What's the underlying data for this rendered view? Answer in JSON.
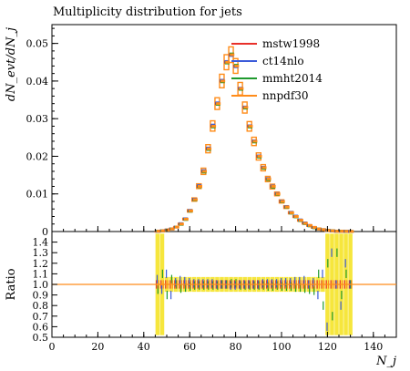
{
  "chart_data": {
    "type": "line",
    "title": "Multiplicity distribution for jets",
    "xlabel": "N_j",
    "ylabel": "dN_evt/dN_j",
    "ratio_ylabel": "Ratio",
    "xlim": [
      0,
      150
    ],
    "ylim": [
      0,
      0.055
    ],
    "ratio_ylim": [
      0.5,
      1.5
    ],
    "x_ticks": [
      0,
      20,
      40,
      60,
      80,
      100,
      120,
      140
    ],
    "y_ticks": [
      0,
      0.01,
      0.02,
      0.03,
      0.04,
      0.05
    ],
    "y_tick_labels": [
      "0",
      "0.01",
      "0.02",
      "0.03",
      "0.04",
      "0.05"
    ],
    "ratio_ticks": [
      0.5,
      0.6,
      0.7,
      0.8,
      0.9,
      1.0,
      1.1,
      1.2,
      1.3,
      1.4
    ],
    "ratio_tick_labels": [
      "0.5",
      "0.6",
      "0.7",
      "0.8",
      "0.9",
      "1.0",
      "1.1",
      "1.2",
      "1.3",
      "1.4"
    ],
    "legend_position": "top-right",
    "grid": false,
    "x": [
      46,
      48,
      50,
      52,
      54,
      56,
      58,
      60,
      62,
      64,
      66,
      68,
      70,
      72,
      74,
      76,
      78,
      80,
      82,
      84,
      86,
      88,
      90,
      92,
      94,
      96,
      98,
      100,
      102,
      104,
      106,
      108,
      110,
      112,
      114,
      116,
      118,
      120,
      122,
      124,
      126,
      128,
      130
    ],
    "series": [
      {
        "name": "mstw1998",
        "color": "#e8302a",
        "values": [
          0.0001,
          0.0002,
          0.0004,
          0.0007,
          0.0012,
          0.002,
          0.0033,
          0.0055,
          0.0085,
          0.012,
          0.016,
          0.022,
          0.028,
          0.034,
          0.04,
          0.045,
          0.047,
          0.044,
          0.038,
          0.033,
          0.028,
          0.024,
          0.02,
          0.017,
          0.014,
          0.012,
          0.01,
          0.008,
          0.0065,
          0.005,
          0.004,
          0.003,
          0.0022,
          0.0016,
          0.0011,
          0.0007,
          0.0005,
          0.0003,
          0.0002,
          0.0001,
          0.0001,
          5e-05,
          3e-05
        ]
      },
      {
        "name": "ct14nlo",
        "color": "#3b5bd9",
        "values": [
          0.0001,
          0.0002,
          0.0004,
          0.0007,
          0.0012,
          0.0021,
          0.0034,
          0.0056,
          0.0086,
          0.0122,
          0.0162,
          0.0222,
          0.0283,
          0.0342,
          0.0402,
          0.0452,
          0.0468,
          0.0438,
          0.0381,
          0.0331,
          0.0281,
          0.0241,
          0.0201,
          0.0171,
          0.0141,
          0.0121,
          0.0101,
          0.0081,
          0.0066,
          0.0051,
          0.0041,
          0.0031,
          0.0023,
          0.0016,
          0.0011,
          0.0007,
          0.0005,
          0.0003,
          0.0002,
          0.0001,
          0.0001,
          5e-05,
          3e-05
        ]
      },
      {
        "name": "mmht2014",
        "color": "#1f9a2e",
        "values": [
          0.0001,
          0.0002,
          0.0004,
          0.0007,
          0.0012,
          0.0019,
          0.0032,
          0.0054,
          0.0084,
          0.0119,
          0.0158,
          0.0218,
          0.0278,
          0.0338,
          0.0398,
          0.0448,
          0.0472,
          0.0442,
          0.0378,
          0.0328,
          0.0278,
          0.0238,
          0.0198,
          0.0168,
          0.0138,
          0.0118,
          0.0099,
          0.0079,
          0.0064,
          0.0049,
          0.0039,
          0.0029,
          0.0021,
          0.0015,
          0.001,
          0.0007,
          0.0005,
          0.0003,
          0.0002,
          0.0001,
          0.0001,
          5e-05,
          3e-05
        ]
      },
      {
        "name": "nnpdf30",
        "color": "#ff8c1a",
        "values": [
          0.0001,
          0.0002,
          0.0004,
          0.0007,
          0.0012,
          0.002,
          0.0033,
          0.0055,
          0.0085,
          0.012,
          0.016,
          0.022,
          0.028,
          0.034,
          0.04,
          0.045,
          0.047,
          0.044,
          0.038,
          0.033,
          0.028,
          0.024,
          0.02,
          0.017,
          0.014,
          0.012,
          0.01,
          0.008,
          0.0065,
          0.005,
          0.004,
          0.003,
          0.0022,
          0.0016,
          0.0011,
          0.0007,
          0.0005,
          0.0003,
          0.0002,
          0.0001,
          0.0001,
          5e-05,
          3e-05
        ]
      }
    ],
    "ratio_series": [
      {
        "name": "mstw1998",
        "values": [
          1.0,
          1.0,
          1.0,
          1.0,
          1.0,
          1.0,
          1.0,
          1.0,
          1.0,
          1.0,
          1.0,
          1.0,
          1.0,
          1.0,
          1.0,
          1.0,
          1.0,
          1.0,
          1.0,
          1.0,
          1.0,
          1.0,
          1.0,
          1.0,
          1.0,
          1.0,
          1.0,
          1.0,
          1.0,
          1.0,
          1.0,
          1.0,
          1.0,
          1.0,
          1.0,
          1.0,
          1.0,
          1.0,
          1.0,
          1.0,
          1.0,
          1.0,
          1.0
        ]
      },
      {
        "name": "ct14nlo",
        "values": [
          1.05,
          0.95,
          1.1,
          0.9,
          1.02,
          1.04,
          1.03,
          1.02,
          1.01,
          1.01,
          1.01,
          1.01,
          1.01,
          1.0,
          1.0,
          1.0,
          0.99,
          0.99,
          1.0,
          1.0,
          1.0,
          1.0,
          1.0,
          1.01,
          1.01,
          1.01,
          1.01,
          1.02,
          1.02,
          1.02,
          1.03,
          1.03,
          1.04,
          1.0,
          1.02,
          0.9,
          1.1,
          0.6,
          1.3,
          1.0,
          0.8,
          1.2,
          1.0
        ]
      },
      {
        "name": "mmht2014",
        "values": [
          0.95,
          1.1,
          0.9,
          1.05,
          1.0,
          0.96,
          0.97,
          0.98,
          0.99,
          0.99,
          0.99,
          0.99,
          0.99,
          0.99,
          1.0,
          1.0,
          1.01,
          1.01,
          0.99,
          0.99,
          0.99,
          0.99,
          0.99,
          0.99,
          0.98,
          0.98,
          0.99,
          0.98,
          0.98,
          0.98,
          0.97,
          0.97,
          0.96,
          0.95,
          0.94,
          1.1,
          0.8,
          1.2,
          0.7,
          1.3,
          0.9,
          1.1,
          1.0
        ]
      },
      {
        "name": "nnpdf30",
        "values": [
          1.0,
          1.0,
          1.0,
          1.0,
          1.0,
          1.0,
          1.0,
          1.0,
          1.0,
          1.0,
          1.0,
          1.0,
          1.0,
          1.0,
          1.0,
          1.0,
          1.0,
          1.0,
          1.0,
          1.0,
          1.0,
          1.0,
          1.0,
          1.0,
          1.0,
          1.0,
          1.0,
          1.0,
          1.0,
          1.0,
          1.0,
          1.0,
          1.0,
          1.0,
          1.0,
          1.0,
          1.0,
          1.0,
          1.0,
          1.0,
          1.0,
          1.0,
          1.0
        ]
      }
    ],
    "ratio_band_color": "#f5e21b"
  }
}
